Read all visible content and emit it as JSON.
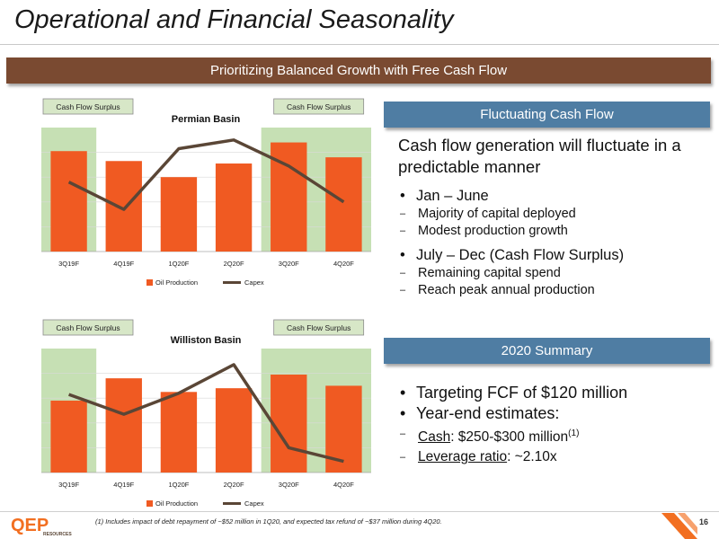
{
  "page": {
    "title": "Operational and Financial Seasonality",
    "subtitle": "Prioritizing Balanced Growth with Free Cash Flow",
    "page_number": "16",
    "footnote": "(1) Includes impact of debt repayment of ~$52 million in 1Q20, and expected tax refund of ~$37 million during 4Q20.",
    "logo_text": "QEP",
    "logo_subtext": "RESOURCES"
  },
  "colors": {
    "title_rule": "#c9c9c9",
    "banner": "#7a4a31",
    "side_header": "#4f7da3",
    "bar": "#f05a22",
    "line": "#5a4636",
    "highlight": "#c6e0b4",
    "tag": "#d7e7c7",
    "logo_orange": "#f26f21"
  },
  "right": {
    "fluct_header": "Fluctuating Cash Flow",
    "lead": "Cash flow generation will fluctuate in a predictable manner",
    "b1": "Jan – June",
    "b1_s1": "Majority of capital deployed",
    "b1_s2": "Modest production growth",
    "b2": "July – Dec (Cash Flow Surplus)",
    "b2_s1": "Remaining capital spend",
    "b2_s2": "Reach peak annual production",
    "summary_header": "2020 Summary",
    "s1": "Targeting FCF of $120 million",
    "s2": "Year-end estimates:",
    "cash_label": "Cash",
    "cash_value": ": $250-$300 million",
    "cash_sup": "(1)",
    "lev_label": "Leverage ratio",
    "lev_value": ": ~2.10x"
  },
  "chart_data": [
    {
      "type": "bar",
      "title": "Permian Basin",
      "categories": [
        "3Q19F",
        "4Q19F",
        "1Q20F",
        "2Q20F",
        "3Q20F",
        "4Q20F"
      ],
      "series": [
        {
          "name": "Oil Production",
          "type": "bar",
          "values": [
            0.81,
            0.73,
            0.6,
            0.71,
            0.88,
            0.76
          ]
        },
        {
          "name": "Capex",
          "type": "line",
          "values": [
            0.56,
            0.34,
            0.83,
            0.9,
            0.69,
            0.4
          ]
        }
      ],
      "ylim": [
        0,
        1
      ],
      "highlight_categories": [
        0,
        4,
        5
      ],
      "highlight_tag": "Cash Flow Surplus",
      "legend_position": "bottom"
    },
    {
      "type": "bar",
      "title": "Williston Basin",
      "categories": [
        "3Q19F",
        "4Q19F",
        "1Q20F",
        "2Q20F",
        "3Q20F",
        "4Q20F"
      ],
      "series": [
        {
          "name": "Oil Production",
          "type": "bar",
          "values": [
            0.58,
            0.76,
            0.65,
            0.68,
            0.79,
            0.7
          ]
        },
        {
          "name": "Capex",
          "type": "line",
          "values": [
            0.63,
            0.47,
            0.64,
            0.87,
            0.2,
            0.09
          ]
        }
      ],
      "ylim": [
        0,
        1
      ],
      "highlight_categories": [
        0,
        4,
        5
      ],
      "highlight_tag": "Cash Flow Surplus",
      "legend_position": "bottom"
    }
  ]
}
